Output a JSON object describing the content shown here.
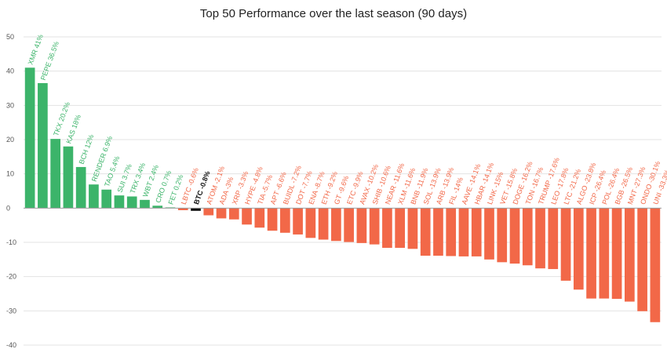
{
  "chart_data": {
    "type": "bar",
    "title": "Top 50 Performance over the last season (90 days)",
    "xlabel": "",
    "ylabel": "",
    "ylim": [
      -40,
      50
    ],
    "yticks": [
      -40,
      -30,
      -20,
      -10,
      0,
      10,
      20,
      30,
      40,
      50
    ],
    "grid": true,
    "colors": {
      "positive": "#3cb46a",
      "negative": "#f26848",
      "highlight": "#111111"
    },
    "bars": [
      {
        "label": "XMR 41%",
        "value": 41,
        "color": "positive"
      },
      {
        "label": "PEPE 36.5%",
        "value": 36.5,
        "color": "positive"
      },
      {
        "label": "TKX 20.2%",
        "value": 20.2,
        "color": "positive"
      },
      {
        "label": "KAS 18%",
        "value": 18,
        "color": "positive"
      },
      {
        "label": "BCH 12%",
        "value": 12,
        "color": "positive"
      },
      {
        "label": "RENDER 6.9%",
        "value": 6.9,
        "color": "positive"
      },
      {
        "label": "TAO 5.4%",
        "value": 5.4,
        "color": "positive"
      },
      {
        "label": "SUI 3.7%",
        "value": 3.7,
        "color": "positive"
      },
      {
        "label": "TRX 3.4%",
        "value": 3.4,
        "color": "positive"
      },
      {
        "label": "WBT 2.4%",
        "value": 2.4,
        "color": "positive"
      },
      {
        "label": "CRO 0.7%",
        "value": 0.7,
        "color": "positive"
      },
      {
        "label": "FET 0.2%",
        "value": 0.2,
        "color": "positive"
      },
      {
        "label": "LBTC -0.6%",
        "value": -0.6,
        "color": "negative"
      },
      {
        "label": "BTC -0.8%",
        "value": -0.8,
        "color": "highlight"
      },
      {
        "label": "ATOM -2.1%",
        "value": -2.1,
        "color": "negative"
      },
      {
        "label": "ADA -3%",
        "value": -3,
        "color": "negative"
      },
      {
        "label": "XRP -3.3%",
        "value": -3.3,
        "color": "negative"
      },
      {
        "label": "HYPE -4.8%",
        "value": -4.8,
        "color": "negative"
      },
      {
        "label": "TIA -5.7%",
        "value": -5.7,
        "color": "negative"
      },
      {
        "label": "APT -6.6%",
        "value": -6.6,
        "color": "negative"
      },
      {
        "label": "BUIDL -7.2%",
        "value": -7.2,
        "color": "negative"
      },
      {
        "label": "DOT -7.7%",
        "value": -7.7,
        "color": "negative"
      },
      {
        "label": "ENA -8.7%",
        "value": -8.7,
        "color": "negative"
      },
      {
        "label": "ETH -9.2%",
        "value": -9.2,
        "color": "negative"
      },
      {
        "label": "GT -9.6%",
        "value": -9.6,
        "color": "negative"
      },
      {
        "label": "ETC -9.9%",
        "value": -9.9,
        "color": "negative"
      },
      {
        "label": "AVAX -10.2%",
        "value": -10.2,
        "color": "negative"
      },
      {
        "label": "SHIB -10.6%",
        "value": -10.6,
        "color": "negative"
      },
      {
        "label": "NEAR -11.6%",
        "value": -11.6,
        "color": "negative"
      },
      {
        "label": "XLM -11.6%",
        "value": -11.6,
        "color": "negative"
      },
      {
        "label": "BNB -11.9%",
        "value": -11.9,
        "color": "negative"
      },
      {
        "label": "SOL -13.9%",
        "value": -13.9,
        "color": "negative"
      },
      {
        "label": "ARB -13.9%",
        "value": -13.9,
        "color": "negative"
      },
      {
        "label": "FIL -14%",
        "value": -14,
        "color": "negative"
      },
      {
        "label": "AAVE -14.1%",
        "value": -14.1,
        "color": "negative"
      },
      {
        "label": "HBAR -14.1%",
        "value": -14.1,
        "color": "negative"
      },
      {
        "label": "LINK -15%",
        "value": -15,
        "color": "negative"
      },
      {
        "label": "VET -15.8%",
        "value": -15.8,
        "color": "negative"
      },
      {
        "label": "DOGE -16.2%",
        "value": -16.2,
        "color": "negative"
      },
      {
        "label": "TON -16.7%",
        "value": -16.7,
        "color": "negative"
      },
      {
        "label": "TRUMP -17.6%",
        "value": -17.6,
        "color": "negative"
      },
      {
        "label": "LEO -17.8%",
        "value": -17.8,
        "color": "negative"
      },
      {
        "label": "LTC -21.2%",
        "value": -21.2,
        "color": "negative"
      },
      {
        "label": "ALGO -23.8%",
        "value": -23.8,
        "color": "negative"
      },
      {
        "label": "ICP -26.4%",
        "value": -26.4,
        "color": "negative"
      },
      {
        "label": "POL -26.4%",
        "value": -26.4,
        "color": "negative"
      },
      {
        "label": "BGB -26.5%",
        "value": -26.5,
        "color": "negative"
      },
      {
        "label": "MNT -27.3%",
        "value": -27.3,
        "color": "negative"
      },
      {
        "label": "ONDO -30.1%",
        "value": -30.1,
        "color": "negative"
      },
      {
        "label": "UNI -33.3%",
        "value": -33.3,
        "color": "negative"
      }
    ]
  }
}
